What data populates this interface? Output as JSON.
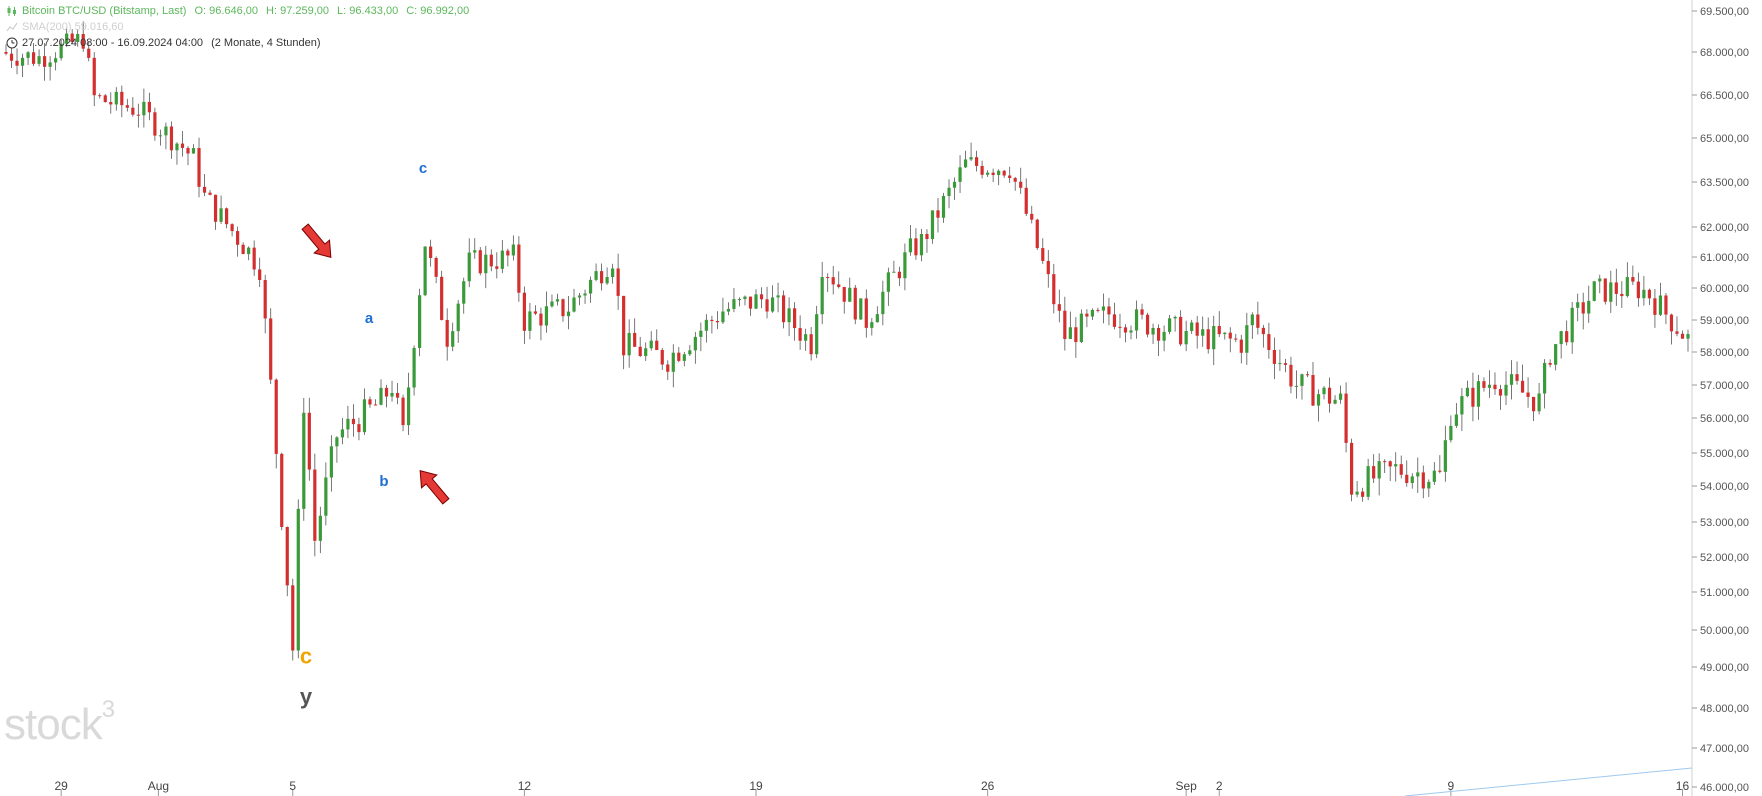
{
  "legend": {
    "instrument": "Bitcoin BTC/USD (Bitstamp, Last)",
    "open": "O: 96.646,00",
    "high": "H: 97.259,00",
    "low": "L: 96.433,00",
    "close": "C: 96.992,00",
    "sma": "SMA(200) 59.016,60",
    "range": "27.07.2024 08:00 - 16.09.2024 04:00",
    "range_note": "(2 Monate, 4 Stunden)"
  },
  "watermark": {
    "text": "stock",
    "sup": "3"
  },
  "colors": {
    "up": "#3a9a3a",
    "down": "#d32f2f",
    "wave_blue": "#1e6fd0",
    "wave_orange": "#f0a500",
    "wave_gray": "#555555",
    "arrow": "#e53935",
    "sma_line": "#9ec9ee"
  },
  "chart_data": {
    "type": "candlestick",
    "instrument": "Bitcoin BTC/USD (Bitstamp, Last)",
    "interval": "4h",
    "ylim": [
      46000,
      69500
    ],
    "y_ticks": [
      "69.500,00",
      "68.000,00",
      "66.500,00",
      "65.000,00",
      "63.500,00",
      "62.000,00",
      "61.000,00",
      "60.000,00",
      "59.000,00",
      "58.000,00",
      "57.000,00",
      "56.000,00",
      "55.000,00",
      "54.000,00",
      "53.000,00",
      "52.000,00",
      "51.000,00",
      "50.000,00",
      "49.000,00",
      "48.000,00",
      "47.000,00",
      "46.000,00"
    ],
    "y_tick_values": [
      69500,
      68000,
      66500,
      65000,
      63500,
      62000,
      61000,
      60000,
      59000,
      58000,
      57000,
      56000,
      55000,
      54000,
      53000,
      52000,
      51000,
      50000,
      49000,
      48000,
      47000,
      46000
    ],
    "x_ticks": [
      {
        "label": "29",
        "date": "2024-07-29"
      },
      {
        "label": "Aug",
        "date": "2024-08-01"
      },
      {
        "label": "5",
        "date": "2024-08-05"
      },
      {
        "label": "12",
        "date": "2024-08-12"
      },
      {
        "label": "19",
        "date": "2024-08-19"
      },
      {
        "label": "26",
        "date": "2024-08-26"
      },
      {
        "label": "Sep",
        "date": "2024-09-01"
      },
      {
        "label": "2",
        "date": "2024-09-02"
      },
      {
        "label": "9",
        "date": "2024-09-09"
      },
      {
        "label": "16",
        "date": "2024-09-16"
      }
    ],
    "close_path": [
      {
        "date": "2024-07-27",
        "close": 68000
      },
      {
        "date": "2024-07-28",
        "close": 67800
      },
      {
        "date": "2024-07-29",
        "close": 68500
      },
      {
        "date": "2024-07-30",
        "close": 66400
      },
      {
        "date": "2024-07-31",
        "close": 66000
      },
      {
        "date": "2024-08-01",
        "close": 64700
      },
      {
        "date": "2024-08-02",
        "close": 64300
      },
      {
        "date": "2024-08-02",
        "close": 63000
      },
      {
        "date": "2024-08-03",
        "close": 61200
      },
      {
        "date": "2024-08-04",
        "close": 60700
      },
      {
        "date": "2024-08-05",
        "close": 56500
      },
      {
        "date": "2024-08-05",
        "close": 52500
      },
      {
        "date": "2024-08-05",
        "close": 49500
      },
      {
        "date": "2024-08-06",
        "close": 55500
      },
      {
        "date": "2024-08-07",
        "close": 56500
      },
      {
        "date": "2024-08-08",
        "close": 57000
      },
      {
        "date": "2024-08-08",
        "close": 55500
      },
      {
        "date": "2024-08-09",
        "close": 58500
      },
      {
        "date": "2024-08-09",
        "close": 61500
      },
      {
        "date": "2024-08-10",
        "close": 60800
      },
      {
        "date": "2024-08-11",
        "close": 61000
      },
      {
        "date": "2024-08-12",
        "close": 59000
      },
      {
        "date": "2024-08-13",
        "close": 59400
      },
      {
        "date": "2024-08-14",
        "close": 61000
      },
      {
        "date": "2024-08-15",
        "close": 58200
      },
      {
        "date": "2024-08-16",
        "close": 57800
      },
      {
        "date": "2024-08-17",
        "close": 59000
      },
      {
        "date": "2024-08-18",
        "close": 59300
      },
      {
        "date": "2024-08-19",
        "close": 59700
      },
      {
        "date": "2024-08-20",
        "close": 58300
      },
      {
        "date": "2024-08-21",
        "close": 60800
      },
      {
        "date": "2024-08-22",
        "close": 59000
      },
      {
        "date": "2024-08-23",
        "close": 61200
      },
      {
        "date": "2024-08-24",
        "close": 61500
      },
      {
        "date": "2024-08-25",
        "close": 64100
      },
      {
        "date": "2024-08-26",
        "close": 64000
      },
      {
        "date": "2024-08-27",
        "close": 63000
      },
      {
        "date": "2024-08-28",
        "close": 58500
      },
      {
        "date": "2024-08-29",
        "close": 59200
      },
      {
        "date": "2024-08-30",
        "close": 59100
      },
      {
        "date": "2024-09-01",
        "close": 58500
      },
      {
        "date": "2024-09-02",
        "close": 58300
      },
      {
        "date": "2024-09-03",
        "close": 59000
      },
      {
        "date": "2024-09-04",
        "close": 57000
      },
      {
        "date": "2024-09-05",
        "close": 56500
      },
      {
        "date": "2024-09-06",
        "close": 54000
      },
      {
        "date": "2024-09-07",
        "close": 54500
      },
      {
        "date": "2024-09-08",
        "close": 54300
      },
      {
        "date": "2024-09-09",
        "close": 56200
      },
      {
        "date": "2024-09-10",
        "close": 57200
      },
      {
        "date": "2024-09-11",
        "close": 56500
      },
      {
        "date": "2024-09-12",
        "close": 58000
      },
      {
        "date": "2024-09-13",
        "close": 59900
      },
      {
        "date": "2024-09-14",
        "close": 60000
      },
      {
        "date": "2024-09-15",
        "close": 59800
      },
      {
        "date": "2024-09-16",
        "close": 58200
      }
    ],
    "wave_labels": [
      {
        "text": "a",
        "price": 58900,
        "color": "wave_blue"
      },
      {
        "text": "b",
        "price": 54000,
        "color": "wave_blue"
      },
      {
        "text": "c",
        "price": 63800,
        "color": "wave_blue"
      },
      {
        "text": "c",
        "price": 49100,
        "color": "wave_orange"
      },
      {
        "text": "y",
        "price": 48100,
        "color": "wave_gray"
      }
    ],
    "arrows": [
      {
        "direction": "down-right",
        "price": 61500
      },
      {
        "direction": "up-left",
        "price": 54000
      }
    ]
  }
}
